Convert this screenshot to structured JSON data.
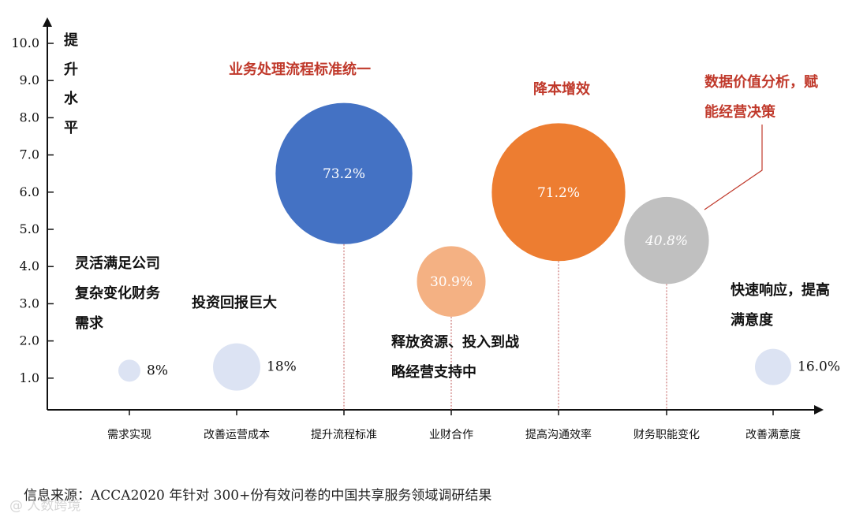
{
  "chart_data": {
    "type": "scatter",
    "title": "",
    "ylabel": "提升水平",
    "xlabel": "",
    "ylim": [
      0,
      10
    ],
    "yticks": [
      "1.0",
      "2.0",
      "3.0",
      "4.0",
      "5.0",
      "6.0",
      "7.0",
      "8.0",
      "9.0",
      "10.0"
    ],
    "categories": [
      "需求实现",
      "改善运营成本",
      "提升流程标准",
      "业财合作",
      "提高沟通效率",
      "财务职能变化",
      "改善满意度"
    ],
    "points": [
      {
        "category": "需求实现",
        "y": 1.2,
        "value": 8.0,
        "label": "8%",
        "color": "#dce3f3",
        "annotation": [
          "灵活满足公司",
          "复杂变化财务",
          "需求"
        ],
        "annotation_color": "#111111"
      },
      {
        "category": "改善运营成本",
        "y": 1.3,
        "value": 18.0,
        "label": "18%",
        "color": "#dce3f3",
        "annotation": [
          "投资回报巨大"
        ],
        "annotation_color": "#111111"
      },
      {
        "category": "提升流程标准",
        "y": 6.5,
        "value": 73.2,
        "label": "73.2%",
        "color": "#4472c4",
        "annotation": [
          "业务处理流程标准统一"
        ],
        "annotation_color": "#c0392b"
      },
      {
        "category": "业财合作",
        "y": 3.6,
        "value": 30.9,
        "label": "30.9%",
        "color": "#f4b183",
        "annotation": [
          "释放资源、投入到战",
          "略经营支持中"
        ],
        "annotation_color": "#111111"
      },
      {
        "category": "提高沟通效率",
        "y": 6.0,
        "value": 71.2,
        "label": "71.2%",
        "color": "#ed7d31",
        "annotation": [
          "降本增效"
        ],
        "annotation_color": "#c0392b"
      },
      {
        "category": "财务职能变化",
        "y": 4.7,
        "value": 40.8,
        "label": "40.8%",
        "color": "#c0c0c0",
        "annotation": [
          "数据价值分析，赋",
          "能经营决策"
        ],
        "annotation_color": "#c0392b"
      },
      {
        "category": "改善满意度",
        "y": 1.3,
        "value": 16.0,
        "label": "16.0%",
        "color": "#dce3f3",
        "annotation": [
          "快速响应，提高",
          "满意度"
        ],
        "annotation_color": "#111111"
      }
    ],
    "grid": false,
    "legend": "none"
  },
  "source_text": "信息来源：ACCA2020 年针对 300+份有效问卷的中国共享服务领域调研结果",
  "watermark_text": "@ 人数跨境"
}
